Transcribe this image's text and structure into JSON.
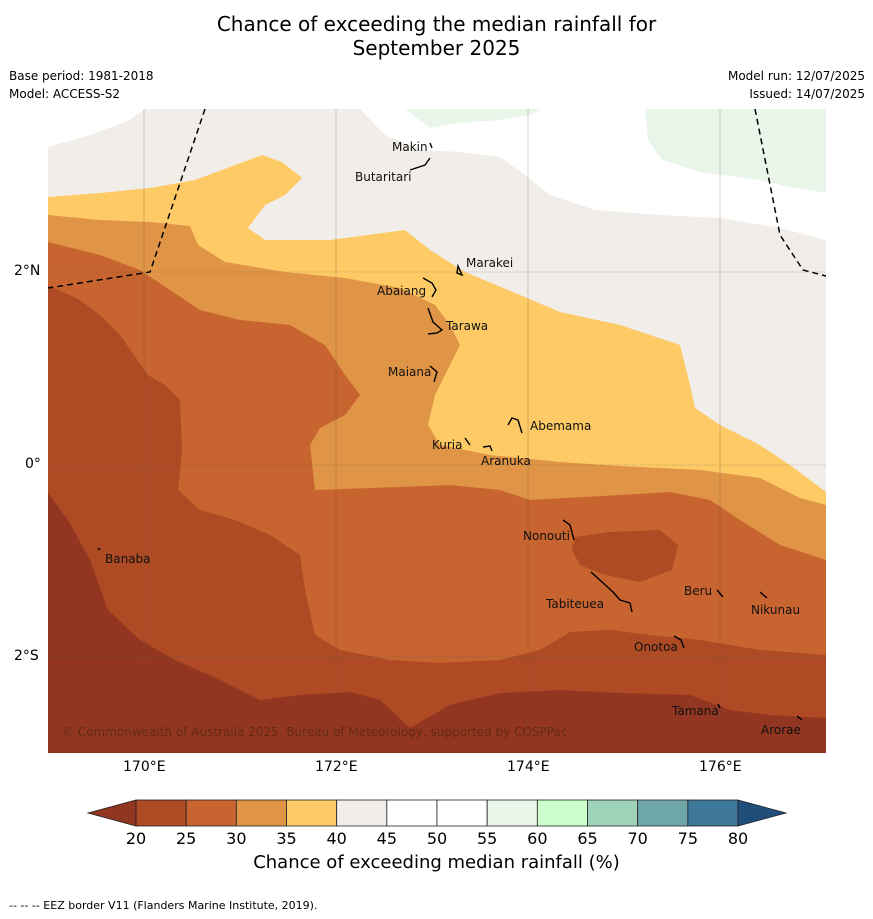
{
  "title_line1": "Chance of exceeding the median rainfall for",
  "title_line2": "September 2025",
  "base_period": "Base period: 1981-2018",
  "model": "Model: ACCESS-S2",
  "model_run": "Model run: 12/07/2025",
  "issued": "Issued: 14/07/2025",
  "lat_labels": [
    "2°N",
    "0°",
    "2°S"
  ],
  "lon_labels": [
    "170°E",
    "172°E",
    "174°E",
    "176°E"
  ],
  "places": [
    "Makin",
    "Butaritari",
    "Marakei",
    "Abaiang",
    "Tarawa",
    "Maiana",
    "Abemama",
    "Kuria",
    "Aranuka",
    "Nonouti",
    "Banaba",
    "Beru",
    "Nikunau",
    "Tabiteuea",
    "Onotoa",
    "Tamana",
    "Arorae"
  ],
  "copyright": "© Commonwealth of Australia 2025, Bureau of Meteorology, supported by COSPPac",
  "colorbar": {
    "ticks": [
      "20",
      "25",
      "30",
      "35",
      "40",
      "45",
      "50",
      "55",
      "60",
      "65",
      "70",
      "75",
      "80"
    ],
    "colors": [
      "#ae4a24",
      "#c8642f",
      "#e09445",
      "#fdca65",
      "#f1ede8",
      "#ffffff",
      "#ffffff",
      "#e9f5e9",
      "#ccffcc",
      "#9ed2b9",
      "#6fa7a8",
      "#3d7799"
    ],
    "low_color": "#933621",
    "high_color": "#1f4e7a",
    "label": "Chance of exceeding median rainfall (%)"
  },
  "footer": "-- -- -- EEZ border V11 (Flanders Marine Institute, 2019)."
}
